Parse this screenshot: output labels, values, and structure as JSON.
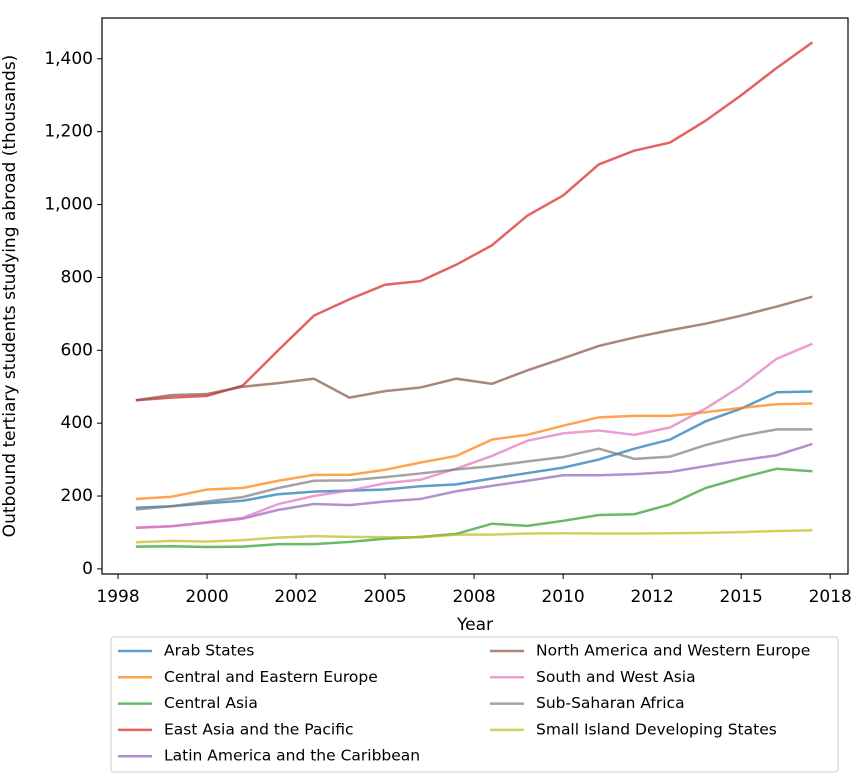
{
  "chart_data": {
    "type": "line",
    "x_label": "Year",
    "y_label": "Outbound tertiary students studying abroad (thousands)",
    "x": [
      1998,
      1999,
      2000,
      2001,
      2002,
      2003,
      2004,
      2005,
      2006,
      2007,
      2008,
      2009,
      2010,
      2011,
      2012,
      2013,
      2014,
      2015,
      2016,
      2017
    ],
    "series": [
      {
        "name": "Arab States",
        "color": "#1f77b4",
        "values": [
          168,
          172,
          180,
          187,
          205,
          212,
          215,
          218,
          227,
          232,
          248,
          263,
          278,
          300,
          330,
          355,
          405,
          440,
          485,
          487
        ]
      },
      {
        "name": "Central and Eastern Europe",
        "color": "#ff7f0e",
        "values": [
          192,
          198,
          218,
          222,
          242,
          258,
          258,
          272,
          292,
          310,
          355,
          368,
          393,
          416,
          420,
          420,
          430,
          442,
          452,
          454
        ]
      },
      {
        "name": "Central Asia",
        "color": "#2ca02c",
        "values": [
          61,
          62,
          60,
          61,
          68,
          68,
          74,
          83,
          88,
          96,
          124,
          118,
          132,
          148,
          150,
          177,
          222,
          250,
          275,
          268
        ]
      },
      {
        "name": "East Asia and the Pacific",
        "color": "#d62728",
        "values": [
          463,
          470,
          475,
          503,
          600,
          695,
          740,
          780,
          790,
          835,
          888,
          970,
          1025,
          1110,
          1148,
          1170,
          1230,
          1300,
          1375,
          1445
        ]
      },
      {
        "name": "Latin America and the Caribbean",
        "color": "#9467bd",
        "values": [
          113,
          117,
          127,
          138,
          162,
          178,
          175,
          185,
          192,
          213,
          228,
          242,
          257,
          257,
          260,
          266,
          282,
          298,
          312,
          343
        ]
      },
      {
        "name": "North America and Western Europe",
        "color": "#8c564b",
        "values": [
          463,
          477,
          480,
          500,
          510,
          522,
          470,
          488,
          498,
          522,
          508,
          545,
          578,
          612,
          635,
          655,
          673,
          695,
          720,
          747
        ]
      },
      {
        "name": "South and West Asia",
        "color": "#e377c2",
        "values": [
          113,
          117,
          128,
          140,
          178,
          200,
          215,
          235,
          245,
          275,
          310,
          352,
          372,
          380,
          368,
          388,
          440,
          502,
          577,
          618
        ]
      },
      {
        "name": "Sub-Saharan Africa",
        "color": "#7f7f7f",
        "values": [
          163,
          172,
          185,
          197,
          222,
          242,
          243,
          252,
          262,
          273,
          282,
          295,
          307,
          330,
          302,
          308,
          340,
          365,
          383,
          383
        ]
      },
      {
        "name": "Small Island Developing States",
        "color": "#bcbd22",
        "values": [
          73,
          77,
          75,
          79,
          86,
          90,
          88,
          87,
          87,
          94,
          94,
          97,
          98,
          97,
          97,
          98,
          99,
          101,
          104,
          106
        ]
      }
    ],
    "xlim": [
      1997.05,
      2018.0
    ],
    "xticks": [
      {
        "value": 1997.5,
        "label": "1998"
      },
      2000,
      {
        "value": 2002.5,
        "label": "2002"
      },
      2005,
      {
        "value": 2007.5,
        "label": "2008"
      },
      2010,
      {
        "value": 2012.5,
        "label": "2012"
      },
      2015,
      {
        "value": 2017.5,
        "label": "2018"
      }
    ],
    "ylim": [
      -14,
      1512
    ],
    "yticks": [
      0,
      200,
      400,
      600,
      800,
      {
        "value": 1000,
        "label": "1,000"
      },
      {
        "value": 1200,
        "label": "1,200"
      },
      {
        "value": 1400,
        "label": "1,400"
      }
    ],
    "grid": false,
    "legend": "below"
  }
}
